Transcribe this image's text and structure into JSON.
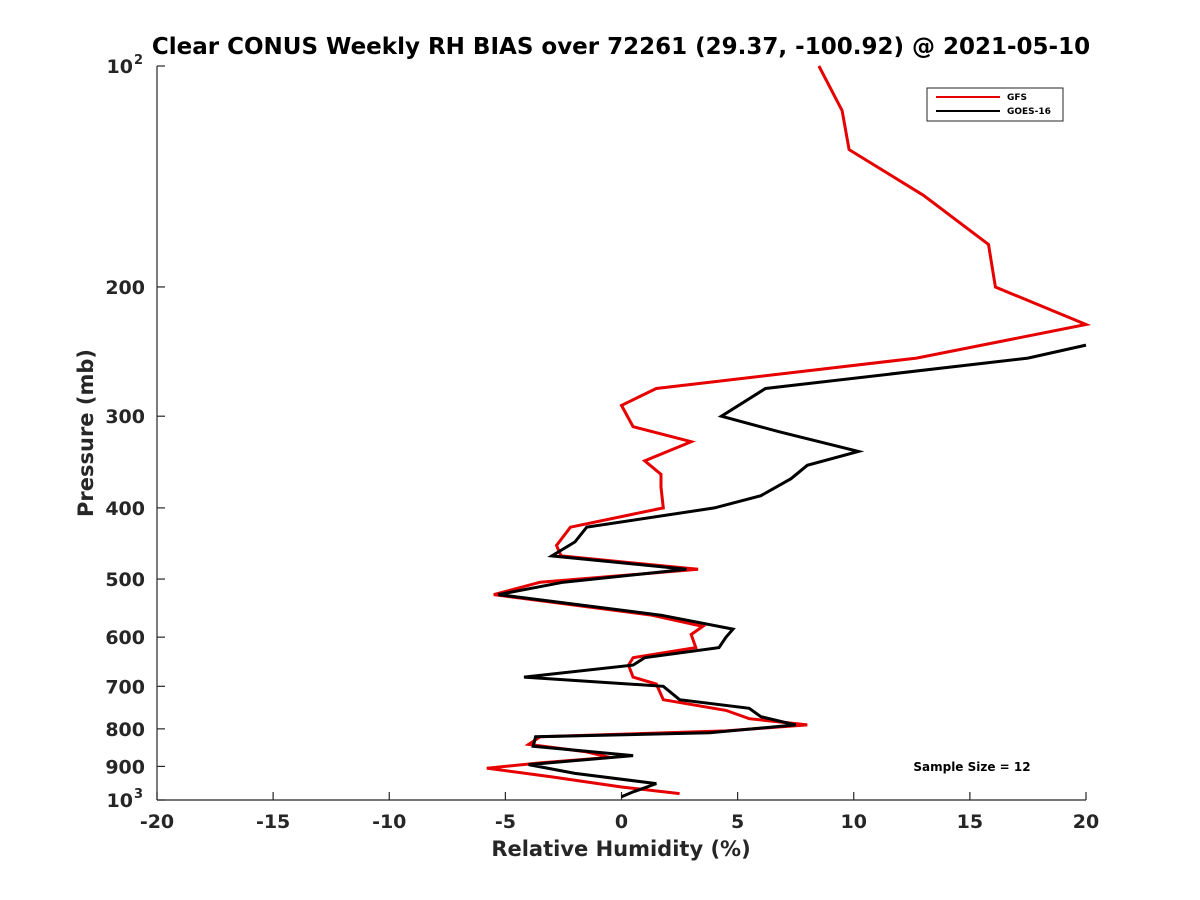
{
  "chart_data": {
    "type": "line",
    "title": "Clear CONUS Weekly RH BIAS over 72261 (29.37, -100.92) @ 2021-05-10",
    "xlabel": "Relative Humidity (%)",
    "ylabel": "Pressure (mb)",
    "xlim": [
      -20,
      20
    ],
    "ylim": [
      100,
      1000
    ],
    "yscale": "log",
    "y_reversed": true,
    "grid": false,
    "legend_position": "top-right",
    "x_ticks": [
      "-20",
      "-15",
      "-10",
      "-5",
      "0",
      "5",
      "10",
      "15",
      "20"
    ],
    "y_ticks": [
      {
        "value": 100,
        "label": "10",
        "sup": "2"
      },
      {
        "value": 200,
        "label": "200"
      },
      {
        "value": 300,
        "label": "300"
      },
      {
        "value": 400,
        "label": "400"
      },
      {
        "value": 500,
        "label": "500"
      },
      {
        "value": 600,
        "label": "600"
      },
      {
        "value": 700,
        "label": "700"
      },
      {
        "value": 800,
        "label": "800"
      },
      {
        "value": 900,
        "label": "900"
      },
      {
        "value": 1000,
        "label": "10",
        "sup": "3"
      }
    ],
    "annotation": "Sample Size = 12",
    "series": [
      {
        "name": "GFS",
        "color": "#e60000",
        "points": [
          [
            8.5,
            100
          ],
          [
            9.5,
            115
          ],
          [
            9.8,
            130
          ],
          [
            13.0,
            150
          ],
          [
            15.8,
            175
          ],
          [
            16.1,
            200
          ],
          [
            20.0,
            225
          ],
          [
            12.7,
            250
          ],
          [
            1.5,
            275
          ],
          [
            0.0,
            290
          ],
          [
            0.5,
            310
          ],
          [
            3.0,
            325
          ],
          [
            1.0,
            345
          ],
          [
            1.7,
            360
          ],
          [
            1.7,
            375
          ],
          [
            1.8,
            400
          ],
          [
            -2.2,
            425
          ],
          [
            -2.8,
            450
          ],
          [
            -2.6,
            465
          ],
          [
            3.3,
            485
          ],
          [
            -3.5,
            505
          ],
          [
            -5.5,
            525
          ],
          [
            1.3,
            560
          ],
          [
            3.5,
            580
          ],
          [
            3.0,
            595
          ],
          [
            3.2,
            620
          ],
          [
            0.5,
            640
          ],
          [
            0.3,
            655
          ],
          [
            0.5,
            680
          ],
          [
            1.5,
            695
          ],
          [
            1.8,
            730
          ],
          [
            4.5,
            755
          ],
          [
            5.5,
            775
          ],
          [
            8.0,
            790
          ],
          [
            4.5,
            805
          ],
          [
            -3.5,
            820
          ],
          [
            -4.0,
            840
          ],
          [
            -1.5,
            860
          ],
          [
            -0.5,
            875
          ],
          [
            -3.5,
            890
          ],
          [
            -5.8,
            905
          ],
          [
            -3.0,
            930
          ],
          [
            0.0,
            960
          ],
          [
            2.5,
            980
          ]
        ]
      },
      {
        "name": "GOES-16",
        "color": "#000000",
        "points": [
          [
            20.0,
            240
          ],
          [
            17.5,
            250
          ],
          [
            6.2,
            275
          ],
          [
            4.3,
            300
          ],
          [
            6.8,
            315
          ],
          [
            10.2,
            335
          ],
          [
            8.0,
            350
          ],
          [
            7.3,
            365
          ],
          [
            6.0,
            385
          ],
          [
            4.0,
            400
          ],
          [
            -1.5,
            425
          ],
          [
            -2.0,
            445
          ],
          [
            -3.0,
            465
          ],
          [
            2.8,
            485
          ],
          [
            -2.5,
            505
          ],
          [
            -5.3,
            525
          ],
          [
            1.7,
            560
          ],
          [
            4.8,
            585
          ],
          [
            4.5,
            600
          ],
          [
            4.2,
            620
          ],
          [
            1.0,
            640
          ],
          [
            0.5,
            655
          ],
          [
            -4.2,
            680
          ],
          [
            1.8,
            700
          ],
          [
            2.5,
            730
          ],
          [
            5.5,
            750
          ],
          [
            6.0,
            770
          ],
          [
            7.5,
            790
          ],
          [
            3.8,
            810
          ],
          [
            -3.7,
            820
          ],
          [
            -3.8,
            845
          ],
          [
            0.5,
            870
          ],
          [
            -4.0,
            895
          ],
          [
            -2.0,
            920
          ],
          [
            1.5,
            950
          ],
          [
            0.5,
            975
          ],
          [
            0.0,
            990
          ]
        ]
      }
    ]
  }
}
